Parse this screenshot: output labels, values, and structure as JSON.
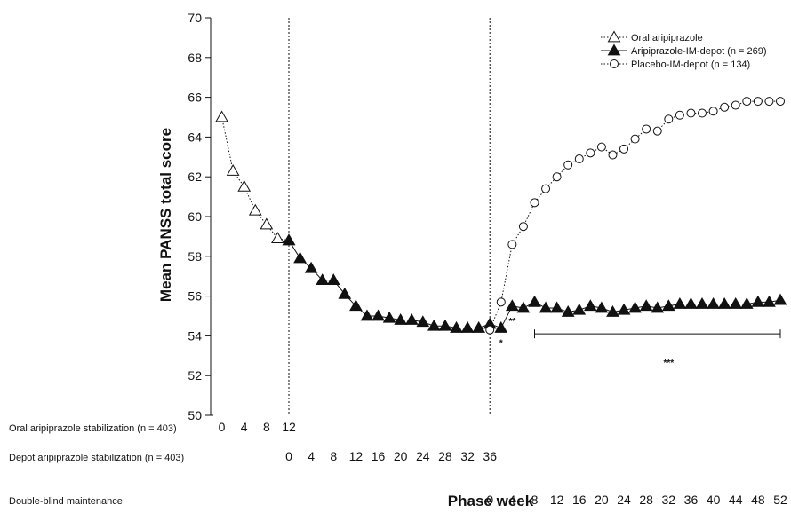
{
  "chart_data": {
    "type": "line",
    "ylabel": "Mean PANSS total score",
    "xlabel": "Phase week",
    "ylim": [
      50,
      70
    ],
    "yticks": [
      50,
      52,
      54,
      56,
      58,
      60,
      62,
      64,
      66,
      68,
      70
    ],
    "legend_position": "top-right",
    "series": [
      {
        "name": "Oral aripiprazole",
        "marker": "open-triangle",
        "line": "dotted",
        "x": [
          0,
          2,
          4,
          6,
          8,
          10,
          12
        ],
        "y": [
          65.0,
          62.3,
          61.5,
          60.3,
          59.6,
          58.9,
          58.8
        ]
      },
      {
        "name": "Aripiprazole-IM-depot (n = 269)",
        "marker": "filled-triangle",
        "line": "solid",
        "x": [
          12,
          14,
          16,
          18,
          20,
          22,
          24,
          26,
          28,
          30,
          32,
          34,
          36,
          38,
          40,
          42,
          44,
          46,
          48,
          50,
          52,
          54,
          56,
          58,
          60,
          62,
          64,
          66,
          68,
          70,
          72,
          74,
          76,
          78,
          80,
          82,
          84,
          86,
          88,
          90,
          92,
          94,
          96,
          98,
          100
        ],
        "y": [
          58.8,
          57.9,
          57.4,
          56.8,
          56.8,
          56.1,
          55.5,
          55.0,
          55.0,
          54.9,
          54.8,
          54.8,
          54.7,
          54.5,
          54.5,
          54.4,
          54.4,
          54.4,
          54.6,
          54.4,
          55.5,
          55.4,
          55.7,
          55.4,
          55.4,
          55.2,
          55.3,
          55.5,
          55.4,
          55.2,
          55.3,
          55.4,
          55.5,
          55.4,
          55.5,
          55.6,
          55.6,
          55.6,
          55.6,
          55.6,
          55.6,
          55.6,
          55.7,
          55.7,
          55.8
        ]
      },
      {
        "name": "Placebo-IM-depot (n = 134)",
        "marker": "open-circle",
        "line": "dotted",
        "x": [
          48,
          50,
          52,
          54,
          56,
          58,
          60,
          62,
          64,
          66,
          68,
          70,
          72,
          74,
          76,
          78,
          80,
          82,
          84,
          86,
          88,
          90,
          92,
          94,
          96,
          98,
          100
        ],
        "y": [
          54.3,
          55.7,
          58.6,
          59.5,
          60.7,
          61.4,
          62.0,
          62.6,
          62.9,
          63.2,
          63.5,
          63.1,
          63.4,
          63.9,
          64.4,
          64.3,
          64.9,
          65.1,
          65.2,
          65.2,
          65.3,
          65.5,
          65.6,
          65.8,
          65.8,
          65.8,
          65.8
        ]
      }
    ],
    "phases": [
      {
        "label": "Oral aripiprazole stabilization (n = 403)",
        "ticks": [
          "0",
          "4",
          "8",
          "12"
        ],
        "tick_x": [
          0,
          4,
          8,
          12
        ],
        "tick_x_between_first": 2,
        "extra_tick": "4",
        "all_ticks": [
          {
            "label": "0",
            "x": 0
          },
          {
            "label": "4",
            "x": 4
          },
          {
            "label": "8",
            "x": 8
          },
          {
            "label": "12",
            "x": 12
          }
        ]
      },
      {
        "label": "Depot aripiprazole stabilization (n = 403)",
        "all_ticks": [
          {
            "label": "0",
            "x": 12
          },
          {
            "label": "4",
            "x": 16
          },
          {
            "label": "8",
            "x": 20
          },
          {
            "label": "12",
            "x": 24
          },
          {
            "label": "16",
            "x": 28
          },
          {
            "label": "20",
            "x": 32
          },
          {
            "label": "24",
            "x": 36
          },
          {
            "label": "28",
            "x": 40
          },
          {
            "label": "32",
            "x": 44
          },
          {
            "label": "36",
            "x": 48
          }
        ]
      },
      {
        "label": "Double-blind maintenance",
        "all_ticks": [
          {
            "label": "0",
            "x": 48
          },
          {
            "label": "4",
            "x": 52
          },
          {
            "label": "8",
            "x": 56
          },
          {
            "label": "12",
            "x": 60
          },
          {
            "label": "16",
            "x": 64
          },
          {
            "label": "20",
            "x": 68
          },
          {
            "label": "24",
            "x": 72
          },
          {
            "label": "28",
            "x": 76
          },
          {
            "label": "32",
            "x": 80
          },
          {
            "label": "36",
            "x": 84
          },
          {
            "label": "40",
            "x": 88
          },
          {
            "label": "44",
            "x": 92
          },
          {
            "label": "48",
            "x": 96
          },
          {
            "label": "52",
            "x": 100
          }
        ]
      }
    ],
    "phase_dividers_x": [
      12,
      48
    ],
    "annotations": [
      {
        "text": "*",
        "x": 50,
        "y": 53.5
      },
      {
        "text": "**",
        "x": 52,
        "y": 54.6
      },
      {
        "text": "***",
        "x": 80,
        "y": 52.5
      }
    ],
    "significance_bracket": {
      "x_start": 56,
      "x_end": 100,
      "y": 54.1
    }
  }
}
